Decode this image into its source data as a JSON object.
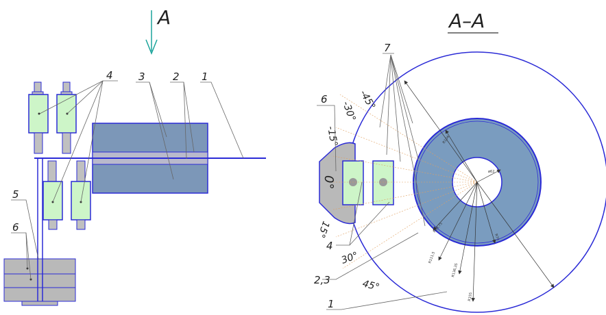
{
  "view_label": "A",
  "section_label": "A–A",
  "callouts": [
    "1",
    "2",
    "3",
    "4",
    "5",
    "6",
    "7",
    "2,3"
  ],
  "angles": [
    "-45°",
    "-30°",
    "-15°",
    "0°",
    "15°",
    "30°",
    "45°"
  ],
  "dimensions": [
    "R104",
    "ø62",
    "R69,75",
    "R70",
    "R111,5",
    "R136,35",
    "R155"
  ],
  "colors": {
    "line": "#2a2ad6",
    "arrow": "#1aa39a",
    "detector_fill": "#cdf5c8",
    "ring_fill": "#7a9cbf",
    "block_fill": "#7c97b8",
    "grey": "#b9b9b9",
    "leader": "#666666",
    "ray": "#e0a060"
  }
}
